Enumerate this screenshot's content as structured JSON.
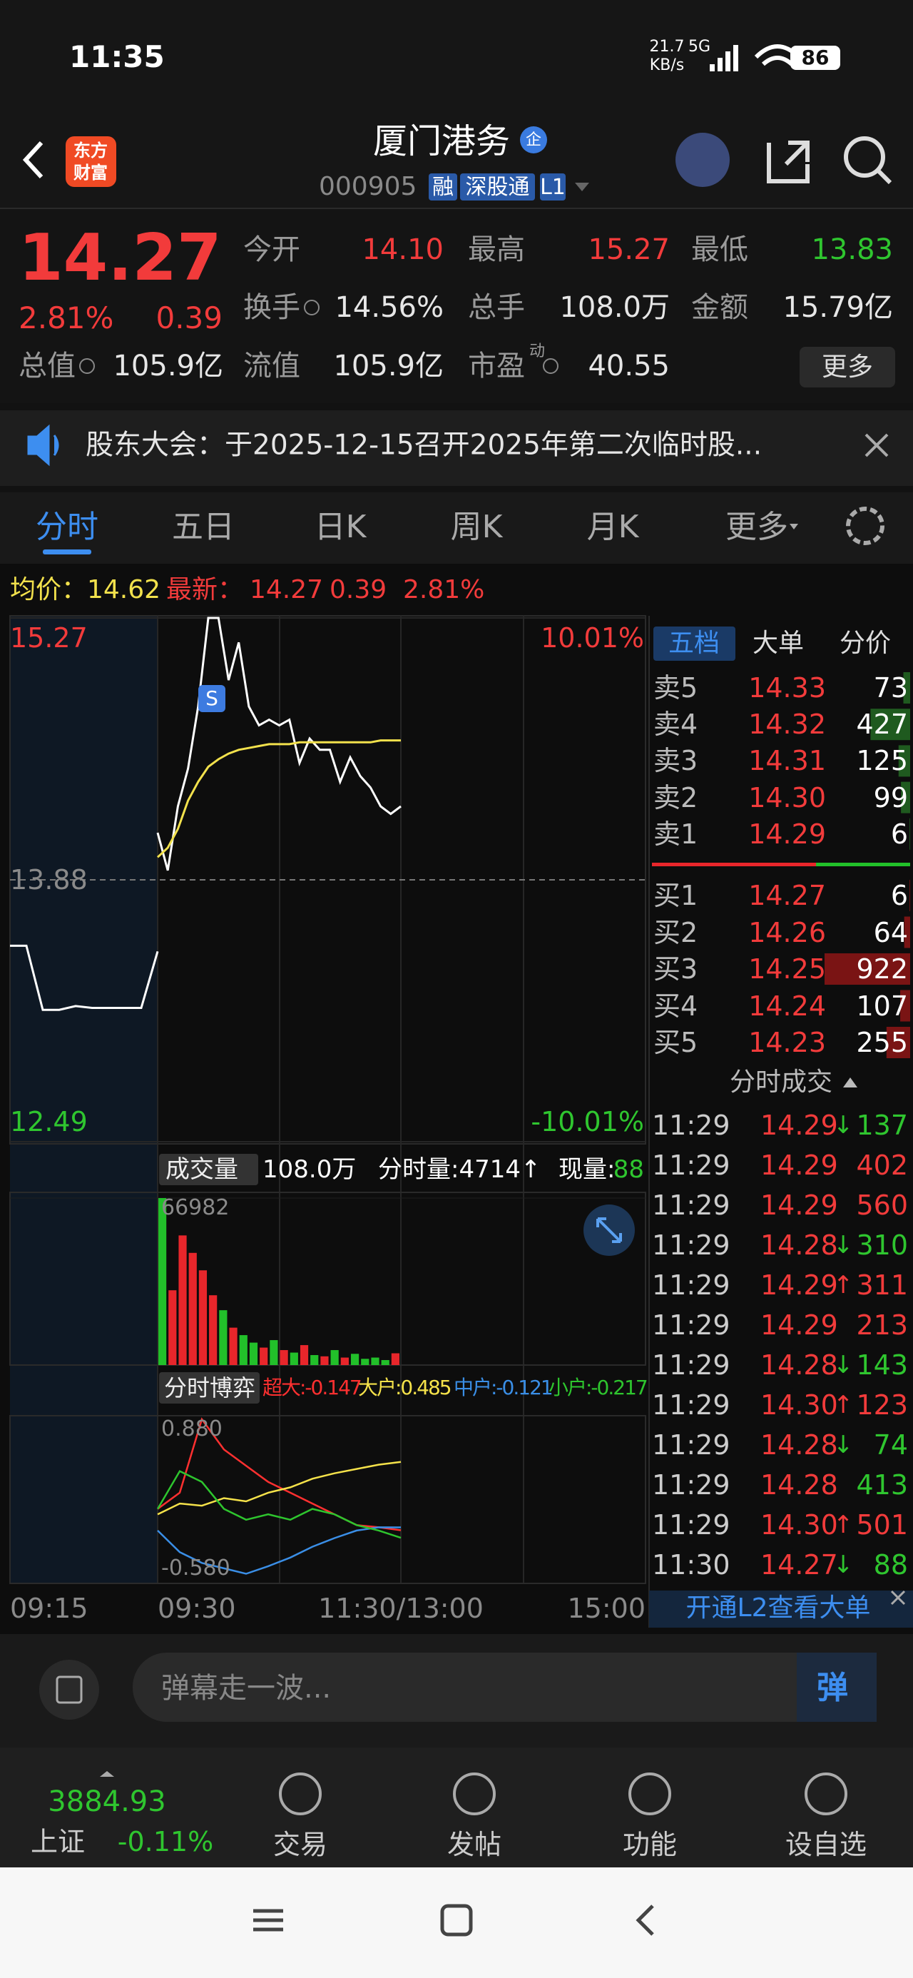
{
  "status": {
    "time": "11:35",
    "speed": "21.7",
    "speed_unit": "KB/s",
    "network": "5G",
    "battery": "86"
  },
  "header": {
    "logo": [
      "东方",
      "财富"
    ],
    "title": "厦门港务",
    "badge": "企",
    "code": "000905",
    "tags": [
      "融",
      "深股通",
      "L1"
    ]
  },
  "quote": {
    "price": "14.27",
    "change_pct": "2.81%",
    "change": "0.39",
    "more": "更多",
    "fields": [
      {
        "label": "今开",
        "value": "14.10",
        "color": "#f23b3b"
      },
      {
        "label": "最高",
        "value": "15.27",
        "color": "#f23b3b"
      },
      {
        "label": "最低",
        "value": "13.83",
        "color": "#2fc62f"
      },
      {
        "label": "换手",
        "value": "14.56%",
        "color": "#e6e6e6",
        "info": true
      },
      {
        "label": "总手",
        "value": "108.0万",
        "color": "#e6e6e6"
      },
      {
        "label": "金额",
        "value": "15.79亿",
        "color": "#e6e6e6"
      },
      {
        "label": "总值",
        "value": "105.9亿",
        "color": "#e6e6e6",
        "info": true
      },
      {
        "label": "流值",
        "value": "105.9亿",
        "color": "#e6e6e6"
      },
      {
        "label": "市盈",
        "sup": "动",
        "value": "40.55",
        "color": "#e6e6e6",
        "info": true
      }
    ]
  },
  "notice": {
    "text": "股东大会：于2025-12-15召开2025年第二次临时股..."
  },
  "tabs": {
    "items": [
      "分时",
      "五日",
      "日K",
      "周K",
      "月K",
      "更多"
    ],
    "active": 0
  },
  "summary": {
    "avg_label": "均价：",
    "avg": "14.62",
    "last_label": "最新：",
    "last": "14.27",
    "change": "0.39",
    "change_pct": "2.81%"
  },
  "chart_data": [
    {
      "type": "line",
      "ylim": [
        12.49,
        15.27
      ],
      "yticks": [
        12.49,
        13.88,
        15.27
      ],
      "y2lim": [
        -10.01,
        10.01
      ],
      "y2ticks": [
        {
          "value": -10.01,
          "label": "-10.01%"
        },
        {
          "value": 10.01,
          "label": "10.01%"
        }
      ],
      "xticks": [
        "09:15",
        "09:30",
        "11:30/13:00",
        "15:00"
      ],
      "grid": true,
      "series": [
        {
          "color": "#ffffff",
          "values": [
            13.53,
            13.53,
            13.19,
            13.19,
            13.21,
            13.2,
            13.2,
            13.2,
            13.2,
            13.5
          ]
        },
        {
          "color": "#ffffff",
          "values": [
            14.13,
            13.93,
            14.27,
            14.47,
            14.8,
            15.27,
            15.27,
            14.94,
            15.14,
            14.8,
            14.7,
            14.73,
            14.7,
            14.73,
            14.5,
            14.63,
            14.57,
            14.57,
            14.4,
            14.53,
            14.43,
            14.37,
            14.27,
            14.23,
            14.27
          ]
        },
        {
          "color": "#f2e14c",
          "values": [
            14.0,
            14.05,
            14.15,
            14.3,
            14.4,
            14.48,
            14.52,
            14.55,
            14.57,
            14.58,
            14.59,
            14.6,
            14.6,
            14.6,
            14.61,
            14.61,
            14.61,
            14.61,
            14.61,
            14.61,
            14.61,
            14.61,
            14.62,
            14.62,
            14.62
          ]
        }
      ]
    },
    {
      "type": "bar",
      "label": "成交量",
      "total": "108.0万",
      "minute_vol": "分时量:4714↑",
      "current_label": "现量:",
      "current": "88",
      "ylim": [
        0,
        66982
      ],
      "yticks": [
        66982
      ],
      "up_color": "#e8262b",
      "down_color": "#22c02a",
      "values": [
        66982,
        30000,
        52000,
        45000,
        38000,
        28000,
        22000,
        15000,
        12000,
        9000,
        7000,
        10000,
        6000,
        5000,
        8000,
        4000,
        3500,
        6000,
        3000,
        4500,
        2500,
        3000,
        2000,
        4714
      ]
    },
    {
      "type": "line",
      "label": "分时博弈",
      "ylim": [
        -0.58,
        0.88
      ],
      "yticks": [
        {
          "value": -0.58,
          "label": "-0.580"
        },
        {
          "value": 0.88,
          "label": "0.880"
        }
      ],
      "series": [
        {
          "name": "超大:-0.147",
          "color": "#ff3030",
          "values": [
            0.05,
            0.2,
            0.88,
            0.6,
            0.45,
            0.3,
            0.2,
            0.1,
            0.0,
            -0.1,
            -0.12,
            -0.147
          ]
        },
        {
          "name": "大户:0.485",
          "color": "#f5e24a",
          "values": [
            0.0,
            0.1,
            0.08,
            0.15,
            0.12,
            0.2,
            0.25,
            0.33,
            0.38,
            0.42,
            0.46,
            0.485
          ]
        },
        {
          "name": "中户:-0.121",
          "color": "#3a8ee6",
          "values": [
            -0.15,
            -0.35,
            -0.45,
            -0.5,
            -0.55,
            -0.48,
            -0.4,
            -0.3,
            -0.22,
            -0.15,
            -0.12,
            -0.121
          ]
        },
        {
          "name": "小户:-0.217",
          "color": "#2ec52e",
          "values": [
            0.05,
            0.4,
            0.3,
            0.05,
            -0.05,
            0.0,
            -0.05,
            0.05,
            0.0,
            -0.1,
            -0.15,
            -0.217
          ]
        }
      ]
    }
  ],
  "order_book": {
    "tabs": [
      "五档",
      "大单",
      "分价"
    ],
    "asks": [
      {
        "label": "卖5",
        "price": "14.33",
        "volume": 73
      },
      {
        "label": "卖4",
        "price": "14.32",
        "volume": 427
      },
      {
        "label": "卖3",
        "price": "14.31",
        "volume": 125
      },
      {
        "label": "卖2",
        "price": "14.30",
        "volume": 99
      },
      {
        "label": "卖1",
        "price": "14.29",
        "volume": 6
      }
    ],
    "bids": [
      {
        "label": "买1",
        "price": "14.27",
        "volume": 6
      },
      {
        "label": "买2",
        "price": "14.26",
        "volume": 64
      },
      {
        "label": "买3",
        "price": "14.25",
        "volume": 922
      },
      {
        "label": "买4",
        "price": "14.24",
        "volume": 107
      },
      {
        "label": "买5",
        "price": "14.23",
        "volume": 255
      }
    ]
  },
  "trades": {
    "title": "分时成交",
    "l2": "开通L2查看大单",
    "rows": [
      {
        "time": "11:29",
        "price": "14.29",
        "dir": "↓",
        "volume": 137,
        "color": "#2fc62f"
      },
      {
        "time": "11:29",
        "price": "14.29",
        "volume": 402,
        "color": "#f23b3b"
      },
      {
        "time": "11:29",
        "price": "14.29",
        "volume": 560,
        "color": "#f23b3b"
      },
      {
        "time": "11:29",
        "price": "14.28",
        "dir": "↓",
        "volume": 310,
        "color": "#2fc62f"
      },
      {
        "time": "11:29",
        "price": "14.29",
        "dir": "↑",
        "volume": 311,
        "color": "#f23b3b"
      },
      {
        "time": "11:29",
        "price": "14.29",
        "volume": 213,
        "color": "#f23b3b"
      },
      {
        "time": "11:29",
        "price": "14.28",
        "dir": "↓",
        "volume": 143,
        "color": "#2fc62f"
      },
      {
        "time": "11:29",
        "price": "14.30",
        "dir": "↑",
        "volume": 123,
        "color": "#f23b3b"
      },
      {
        "time": "11:29",
        "price": "14.28",
        "dir": "↓",
        "volume": 74,
        "color": "#2fc62f"
      },
      {
        "time": "11:29",
        "price": "14.28",
        "volume": 413,
        "color": "#2fc62f"
      },
      {
        "time": "11:29",
        "price": "14.30",
        "dir": "↑",
        "volume": 501,
        "color": "#f23b3b"
      },
      {
        "time": "11:30",
        "price": "14.27",
        "dir": "↓",
        "volume": 88,
        "color": "#2fc62f"
      }
    ]
  },
  "comment": {
    "placeholder": "弹幕走一波...",
    "button": "弹"
  },
  "nav": {
    "index_value": "3884.93",
    "index_name": "上证",
    "index_change": "-0.11%",
    "items": [
      "交易",
      "发帖",
      "功能",
      "设自选"
    ]
  }
}
